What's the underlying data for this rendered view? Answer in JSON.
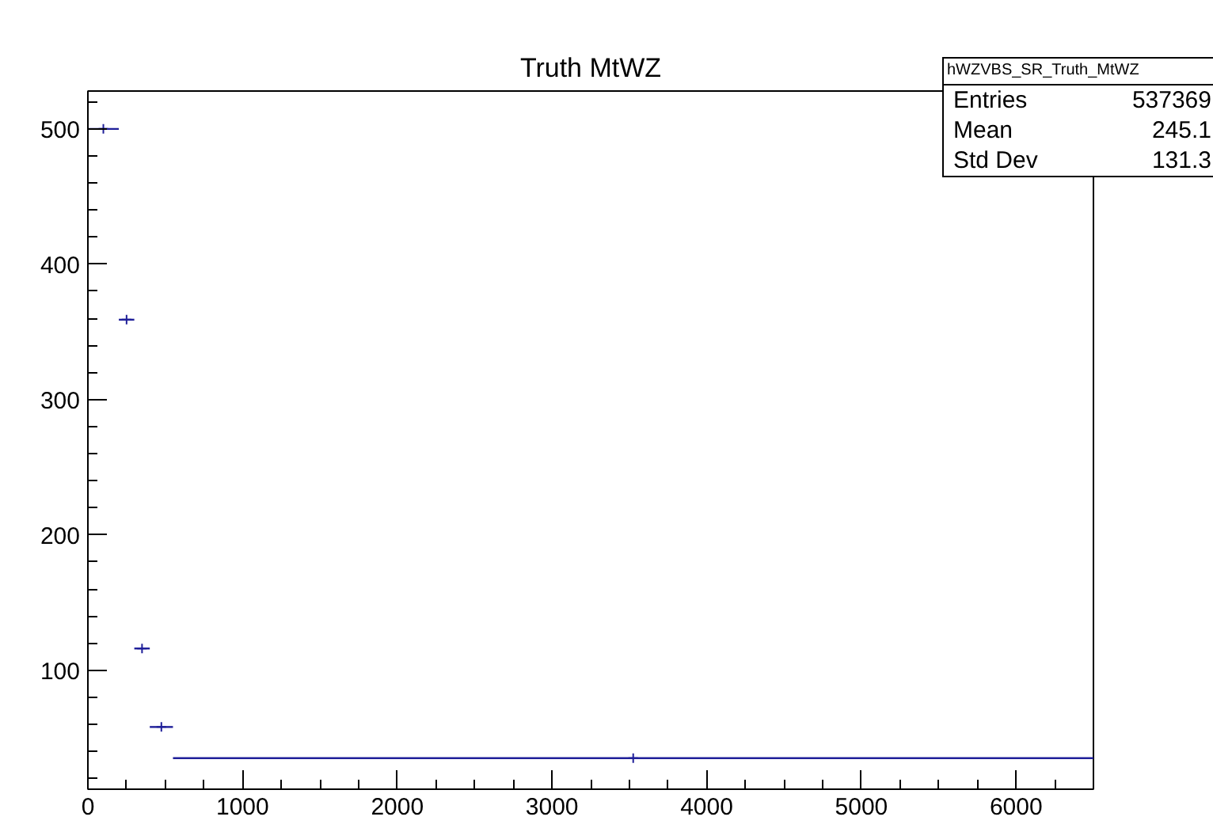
{
  "chart_data": {
    "type": "scatter",
    "title": "Truth MtWZ",
    "x": [
      100,
      250,
      350,
      475,
      3525
    ],
    "values": [
      500,
      359,
      116,
      58,
      35
    ],
    "xerrors": [
      100,
      50,
      50,
      75,
      2975
    ],
    "color": "#1f1f99",
    "marker": "cross",
    "grid": false,
    "xlim": [
      0,
      6500
    ],
    "xticks": [
      0,
      1000,
      2000,
      3000,
      4000,
      5000,
      6000
    ],
    "ylim": [
      12,
      528
    ],
    "yticks": [
      100,
      200,
      300,
      400,
      500
    ],
    "annotations": [
      "hWZVBS_SR_Truth_MtWZ",
      "Entries",
      "537369",
      "Mean",
      "245.1",
      "Std Dev",
      "131.3"
    ]
  }
}
